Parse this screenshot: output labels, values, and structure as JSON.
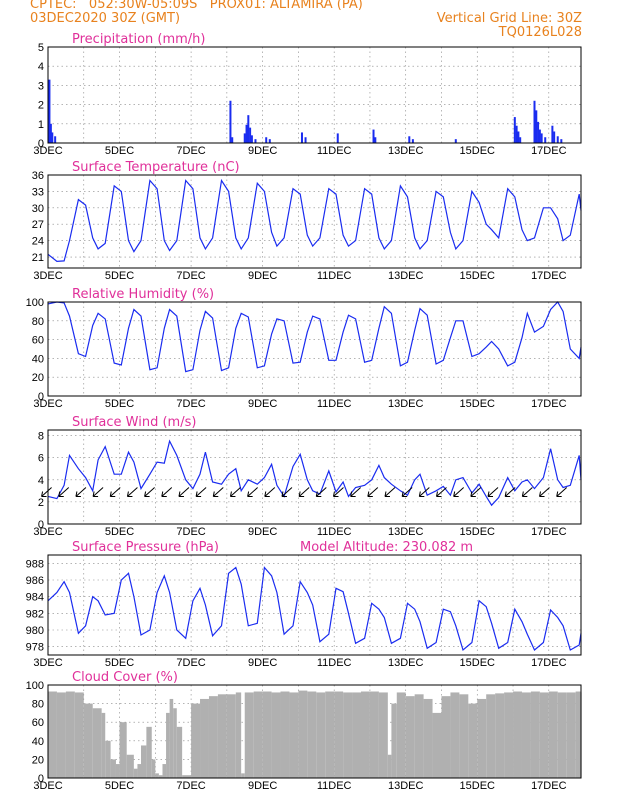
{
  "header": {
    "line1": "CPTEC:   052:30W-05:09S   PROX01: ALTAMIRA (PA)",
    "line2_left": "03DEC2020 30Z (GMT)",
    "line2_right": "Vertical Grid Line: 30Z",
    "line3_right": "TQ0126L028"
  },
  "colors": {
    "header": "#e8821e",
    "panel_title": "#e0309a",
    "series": "#1a2cf0",
    "cloud": "#b0b0b0",
    "grid": "#888888"
  },
  "chart_data": [
    {
      "type": "bar",
      "title": "Precipitation (mm/h)",
      "ylim": [
        0,
        5
      ],
      "yticks": [
        "0",
        "1",
        "2",
        "3",
        "4",
        "5"
      ],
      "xticks": [
        "3DEC",
        "5DEC",
        "7DEC",
        "9DEC",
        "11DEC",
        "13DEC",
        "15DEC",
        "17DEC"
      ],
      "x_range_days": [
        3,
        17.9
      ],
      "x": [
        3.04,
        3.08,
        3.12,
        3.2,
        8.1,
        8.15,
        8.5,
        8.55,
        8.6,
        8.65,
        8.7,
        8.8,
        9.1,
        9.2,
        10.1,
        10.2,
        11.1,
        12.1,
        12.15,
        13.1,
        13.2,
        14.4,
        16.05,
        16.1,
        16.15,
        16.2,
        16.6,
        16.65,
        16.7,
        16.75,
        16.8,
        16.9,
        17.1,
        17.15,
        17.25,
        17.35
      ],
      "values": [
        3.3,
        1.0,
        0.55,
        0.35,
        2.2,
        0.3,
        0.5,
        0.95,
        1.45,
        0.8,
        0.4,
        0.2,
        0.3,
        0.2,
        0.55,
        0.3,
        0.5,
        0.7,
        0.3,
        0.35,
        0.2,
        0.2,
        1.35,
        0.9,
        0.6,
        0.3,
        2.2,
        1.7,
        1.1,
        0.7,
        0.5,
        0.3,
        0.9,
        0.6,
        0.35,
        0.2
      ]
    },
    {
      "type": "line",
      "title": "Surface Temperature (nC)",
      "ylim": [
        19,
        36
      ],
      "yticks": [
        "21",
        "24",
        "27",
        "30",
        "33",
        "36"
      ],
      "xticks": [
        "3DEC",
        "5DEC",
        "7DEC",
        "9DEC",
        "11DEC",
        "13DEC",
        "15DEC",
        "17DEC"
      ],
      "x_range_days": [
        3,
        17.9
      ],
      "x": [
        3.0,
        3.25,
        3.45,
        3.6,
        3.85,
        4.05,
        4.25,
        4.4,
        4.6,
        4.85,
        5.05,
        5.25,
        5.4,
        5.6,
        5.85,
        6.05,
        6.25,
        6.4,
        6.6,
        6.85,
        7.05,
        7.25,
        7.4,
        7.6,
        7.85,
        8.05,
        8.25,
        8.4,
        8.6,
        8.85,
        9.05,
        9.25,
        9.4,
        9.6,
        9.85,
        10.05,
        10.25,
        10.4,
        10.6,
        10.85,
        11.05,
        11.25,
        11.4,
        11.6,
        11.85,
        12.05,
        12.25,
        12.4,
        12.6,
        12.85,
        13.05,
        13.25,
        13.4,
        13.6,
        13.85,
        14.05,
        14.25,
        14.4,
        14.6,
        14.85,
        15.05,
        15.25,
        15.4,
        15.6,
        15.85,
        16.05,
        16.25,
        16.4,
        16.6,
        16.85,
        17.05,
        17.25,
        17.4,
        17.6,
        17.85,
        17.9
      ],
      "values": [
        21.5,
        20.2,
        20.3,
        24.0,
        31.5,
        30.5,
        24.5,
        22.5,
        23.5,
        34.0,
        33.0,
        24.0,
        22.0,
        24.0,
        35.0,
        33.5,
        24.0,
        22.2,
        24.0,
        35.0,
        33.5,
        24.5,
        22.5,
        24.5,
        35.0,
        33.0,
        24.5,
        22.5,
        24.5,
        34.5,
        33.0,
        25.5,
        23.0,
        24.5,
        33.5,
        32.5,
        25.0,
        23.0,
        24.5,
        33.5,
        32.5,
        25.0,
        23.0,
        24.0,
        33.5,
        32.5,
        24.5,
        22.5,
        24.0,
        34.0,
        32.0,
        24.5,
        22.5,
        24.0,
        33.0,
        32.0,
        25.5,
        22.5,
        24.0,
        33.0,
        31.0,
        27.0,
        26.0,
        24.5,
        33.5,
        32.0,
        26.0,
        24.0,
        24.5,
        30.0,
        30.0,
        28.0,
        24.0,
        25.0,
        32.5,
        29.5
      ]
    },
    {
      "type": "line",
      "title": "Relative Humidity (%)",
      "ylim": [
        0,
        100
      ],
      "yticks": [
        "0",
        "20",
        "40",
        "60",
        "80",
        "100"
      ],
      "xticks": [
        "3DEC",
        "5DEC",
        "7DEC",
        "9DEC",
        "11DEC",
        "13DEC",
        "15DEC",
        "17DEC"
      ],
      "x_range_days": [
        3,
        17.9
      ],
      "x": [
        3.0,
        3.25,
        3.45,
        3.6,
        3.85,
        4.05,
        4.25,
        4.4,
        4.6,
        4.85,
        5.05,
        5.25,
        5.4,
        5.6,
        5.85,
        6.05,
        6.25,
        6.4,
        6.6,
        6.85,
        7.05,
        7.25,
        7.4,
        7.6,
        7.85,
        8.05,
        8.25,
        8.4,
        8.6,
        8.85,
        9.05,
        9.25,
        9.4,
        9.6,
        9.85,
        10.05,
        10.25,
        10.4,
        10.6,
        10.85,
        11.05,
        11.25,
        11.4,
        11.6,
        11.85,
        12.05,
        12.25,
        12.4,
        12.6,
        12.85,
        13.05,
        13.25,
        13.4,
        13.6,
        13.85,
        14.05,
        14.25,
        14.4,
        14.6,
        14.85,
        15.05,
        15.25,
        15.4,
        15.6,
        15.85,
        16.05,
        16.25,
        16.4,
        16.6,
        16.85,
        17.05,
        17.25,
        17.4,
        17.6,
        17.85,
        17.9
      ],
      "values": [
        98.0,
        100.0,
        99.0,
        85.0,
        45.0,
        42.0,
        75.0,
        88.0,
        82.0,
        35.0,
        33.0,
        72.0,
        92.0,
        85.0,
        28.0,
        30.0,
        72.0,
        92.0,
        85.0,
        26.0,
        28.0,
        70.0,
        90.0,
        83.0,
        27.0,
        30.0,
        72.0,
        88.0,
        84.0,
        30.0,
        32.0,
        66.0,
        82.0,
        80.0,
        35.0,
        36.0,
        68.0,
        85.0,
        82.0,
        38.0,
        38.0,
        68.0,
        86.0,
        82.0,
        36.0,
        38.0,
        72.0,
        95.0,
        88.0,
        32.0,
        36.0,
        70.0,
        93.0,
        86.0,
        34.0,
        38.0,
        62.0,
        80.0,
        80.0,
        42.0,
        45.0,
        52.0,
        58.0,
        50.0,
        32.0,
        36.0,
        62.0,
        88.0,
        68.0,
        74.0,
        92.0,
        100.0,
        90.0,
        50.0,
        40.0,
        52.0
      ]
    },
    {
      "type": "line",
      "title": "Surface Wind (m/s)",
      "ylim": [
        0,
        8.5
      ],
      "yticks": [
        "0",
        "2",
        "4",
        "6",
        "8"
      ],
      "xticks": [
        "3DEC",
        "5DEC",
        "7DEC",
        "9DEC",
        "11DEC",
        "13DEC",
        "15DEC",
        "17DEC"
      ],
      "x_range_days": [
        3,
        17.9
      ],
      "x": [
        3.0,
        3.25,
        3.45,
        3.6,
        3.85,
        4.05,
        4.25,
        4.4,
        4.6,
        4.85,
        5.05,
        5.25,
        5.4,
        5.6,
        5.85,
        6.05,
        6.25,
        6.4,
        6.6,
        6.85,
        7.05,
        7.25,
        7.4,
        7.6,
        7.85,
        8.05,
        8.25,
        8.4,
        8.6,
        8.85,
        9.05,
        9.25,
        9.4,
        9.6,
        9.85,
        10.05,
        10.25,
        10.4,
        10.6,
        10.85,
        11.05,
        11.25,
        11.4,
        11.6,
        11.85,
        12.05,
        12.25,
        12.4,
        12.6,
        12.85,
        13.05,
        13.25,
        13.4,
        13.6,
        13.85,
        14.05,
        14.25,
        14.4,
        14.6,
        14.85,
        15.05,
        15.25,
        15.4,
        15.6,
        15.85,
        16.05,
        16.25,
        16.4,
        16.6,
        16.85,
        17.05,
        17.25,
        17.4,
        17.6,
        17.85,
        17.9
      ],
      "values": [
        2.5,
        2.3,
        3.5,
        6.2,
        5.0,
        4.2,
        3.0,
        5.8,
        7.0,
        4.5,
        4.5,
        6.5,
        5.6,
        3.2,
        4.5,
        5.6,
        5.5,
        7.5,
        6.2,
        4.0,
        3.2,
        4.5,
        6.5,
        3.8,
        3.6,
        4.5,
        5.0,
        3.0,
        4.0,
        3.6,
        4.2,
        5.4,
        3.5,
        2.5,
        5.2,
        6.3,
        4.0,
        3.0,
        2.7,
        4.8,
        2.9,
        3.8,
        2.5,
        3.3,
        3.5,
        4.0,
        5.3,
        4.2,
        3.6,
        3.0,
        2.6,
        4.0,
        4.5,
        2.6,
        3.0,
        3.4,
        2.6,
        4.0,
        4.2,
        2.8,
        3.6,
        2.5,
        1.7,
        2.4,
        4.2,
        3.0,
        3.8,
        4.0,
        3.2,
        4.2,
        6.8,
        4.0,
        3.3,
        3.5,
        6.2,
        4.0
      ]
    },
    {
      "type": "line",
      "title": "Surface Pressure (hPa)",
      "subtitle": "Model Altitude: 230.082 m",
      "ylim": [
        977,
        989
      ],
      "yticks": [
        "978",
        "980",
        "982",
        "984",
        "986",
        "988"
      ],
      "xticks": [
        "3DEC",
        "5DEC",
        "7DEC",
        "9DEC",
        "11DEC",
        "13DEC",
        "15DEC",
        "17DEC"
      ],
      "x_range_days": [
        3,
        17.9
      ],
      "x": [
        3.0,
        3.25,
        3.45,
        3.6,
        3.85,
        4.05,
        4.25,
        4.4,
        4.6,
        4.85,
        5.05,
        5.25,
        5.4,
        5.6,
        5.85,
        6.05,
        6.25,
        6.4,
        6.6,
        6.85,
        7.05,
        7.25,
        7.4,
        7.6,
        7.85,
        8.05,
        8.25,
        8.4,
        8.6,
        8.85,
        9.05,
        9.25,
        9.4,
        9.6,
        9.85,
        10.05,
        10.25,
        10.4,
        10.6,
        10.85,
        11.05,
        11.25,
        11.4,
        11.6,
        11.85,
        12.05,
        12.25,
        12.4,
        12.6,
        12.85,
        13.05,
        13.25,
        13.4,
        13.6,
        13.85,
        14.05,
        14.25,
        14.4,
        14.6,
        14.85,
        15.05,
        15.25,
        15.4,
        15.6,
        15.85,
        16.05,
        16.25,
        16.4,
        16.6,
        16.85,
        17.05,
        17.25,
        17.4,
        17.6,
        17.85,
        17.9
      ],
      "values": [
        983.5,
        984.5,
        985.8,
        984.5,
        979.6,
        980.5,
        984.0,
        983.5,
        981.8,
        982.0,
        986.0,
        986.8,
        984.0,
        979.4,
        980.0,
        984.5,
        986.5,
        984.5,
        980.0,
        979.0,
        983.5,
        985.0,
        983.0,
        979.3,
        980.5,
        986.8,
        987.5,
        985.5,
        980.5,
        980.8,
        987.5,
        986.5,
        984.5,
        979.5,
        980.5,
        985.8,
        984.5,
        983.0,
        978.6,
        979.5,
        985.0,
        984.6,
        982.0,
        978.4,
        979.0,
        983.2,
        982.5,
        981.5,
        978.4,
        979.0,
        983.2,
        982.5,
        981.0,
        977.8,
        978.5,
        982.5,
        982.2,
        980.5,
        977.6,
        978.5,
        983.5,
        982.8,
        980.8,
        977.8,
        978.5,
        982.5,
        981.0,
        979.5,
        977.6,
        978.5,
        982.4,
        981.5,
        980.5,
        977.6,
        978.2,
        979.6
      ]
    },
    {
      "type": "bar",
      "title": "Cloud Cover (%)",
      "ylim": [
        0,
        100
      ],
      "yticks": [
        "0",
        "20",
        "40",
        "60",
        "80",
        "100"
      ],
      "xticks": [
        "3DEC",
        "5DEC",
        "7DEC",
        "9DEC",
        "11DEC",
        "13DEC",
        "15DEC",
        "17DEC"
      ],
      "x_range_days": [
        3,
        17.9
      ],
      "x": [
        3.0,
        3.25,
        3.5,
        3.75,
        4.0,
        4.25,
        4.5,
        4.6,
        4.75,
        4.9,
        5.0,
        5.2,
        5.4,
        5.5,
        5.6,
        5.75,
        5.9,
        6.0,
        6.1,
        6.2,
        6.3,
        6.4,
        6.5,
        6.6,
        6.75,
        7.0,
        7.25,
        7.5,
        7.75,
        8.0,
        8.25,
        8.4,
        8.5,
        8.75,
        9.0,
        9.25,
        9.5,
        9.75,
        10.0,
        10.25,
        10.5,
        10.75,
        11.0,
        11.25,
        11.5,
        11.75,
        12.0,
        12.25,
        12.5,
        12.6,
        12.75,
        13.0,
        13.25,
        13.5,
        13.75,
        14.0,
        14.25,
        14.5,
        14.75,
        15.0,
        15.25,
        15.5,
        15.75,
        16.0,
        16.25,
        16.5,
        16.75,
        17.0,
        17.25,
        17.5,
        17.75,
        17.9
      ],
      "values": [
        93,
        92,
        93,
        92,
        80,
        75,
        70,
        40,
        20,
        15,
        60,
        25,
        10,
        15,
        35,
        55,
        20,
        5,
        3,
        15,
        70,
        85,
        75,
        55,
        3,
        80,
        85,
        88,
        90,
        90,
        92,
        5,
        92,
        93,
        93,
        92,
        93,
        92,
        94,
        93,
        92,
        93,
        93,
        92,
        92,
        93,
        93,
        92,
        25,
        80,
        92,
        88,
        90,
        85,
        70,
        88,
        92,
        90,
        80,
        85,
        90,
        91,
        92,
        93,
        92,
        93,
        92,
        93,
        92,
        92,
        93,
        92
      ]
    }
  ]
}
